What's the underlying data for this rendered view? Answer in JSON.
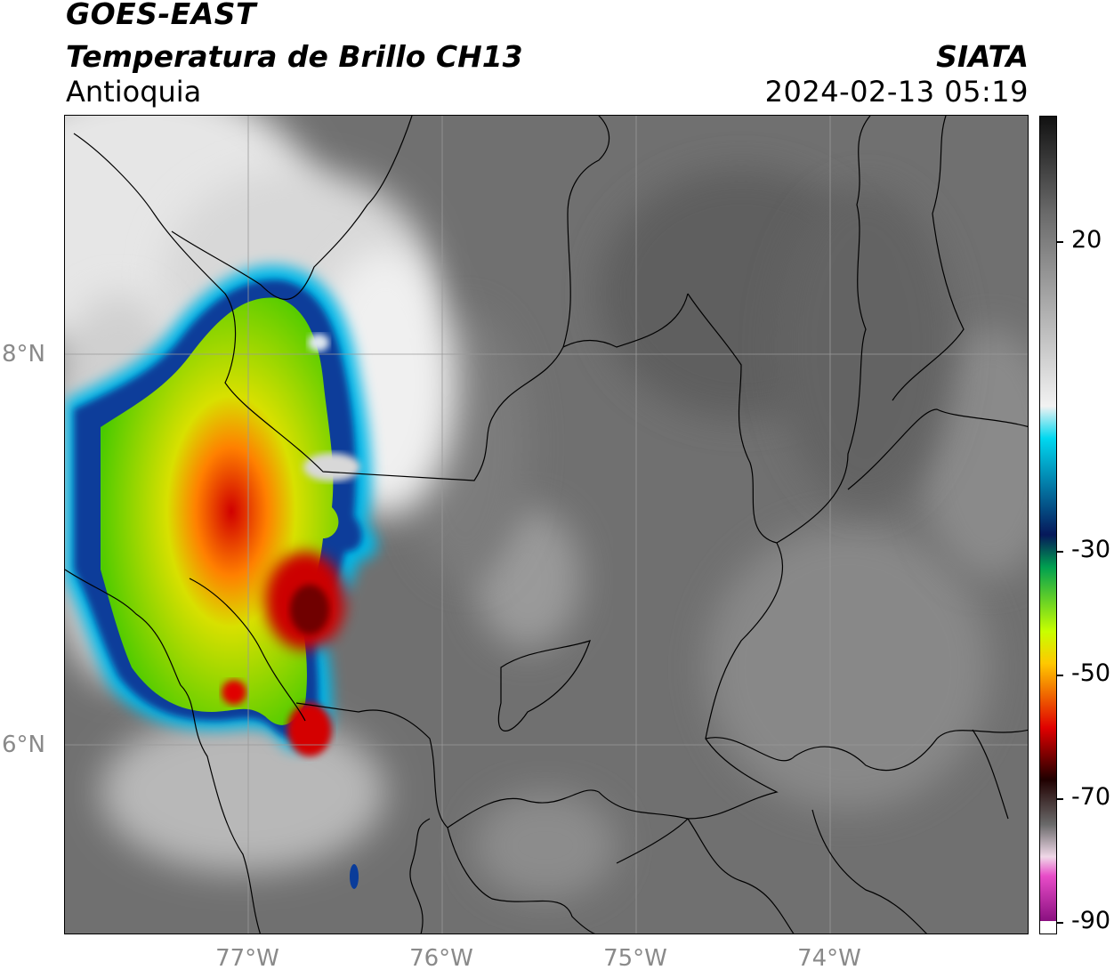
{
  "header": {
    "title": "GOES-EAST",
    "subtitle": "Temperatura de Brillo CH13",
    "region": "Antioquia",
    "organization": "SIATA",
    "datetime": "2024-02-13 05:19"
  },
  "axes": {
    "lat_labels": [
      "8°N",
      "6°N"
    ],
    "lon_labels": [
      "77°W",
      "76°W",
      "75°W",
      "74°W"
    ]
  },
  "colorbar": {
    "tick_labels": [
      "20",
      "-30",
      "-50",
      "-70",
      "-90"
    ],
    "range": [
      -90,
      35
    ],
    "stops": [
      {
        "value": 35,
        "color": "#111111"
      },
      {
        "value": 20,
        "color": "#6a6a6a"
      },
      {
        "value": -10,
        "color": "#f2f2f2"
      },
      {
        "value": -15,
        "color": "#00d8f0"
      },
      {
        "value": -30,
        "color": "#06185a"
      },
      {
        "value": -35,
        "color": "#00a050"
      },
      {
        "value": -45,
        "color": "#c8ff00"
      },
      {
        "value": -50,
        "color": "#ffc800"
      },
      {
        "value": -60,
        "color": "#e00000"
      },
      {
        "value": -68,
        "color": "#200000"
      },
      {
        "value": -75,
        "color": "#6a6a6a"
      },
      {
        "value": -80,
        "color": "#f0d8e8"
      },
      {
        "value": -83,
        "color": "#e84cc8"
      },
      {
        "value": -90,
        "color": "#8a1080"
      }
    ]
  },
  "colors": {
    "background": "#ffffff",
    "land_gray": "#6f6f6f",
    "boundary_line": "#000000",
    "gridline": "#9a9a9a",
    "cold_cloud_red": "#d00000",
    "cold_cloud_green": "#4cd000"
  }
}
